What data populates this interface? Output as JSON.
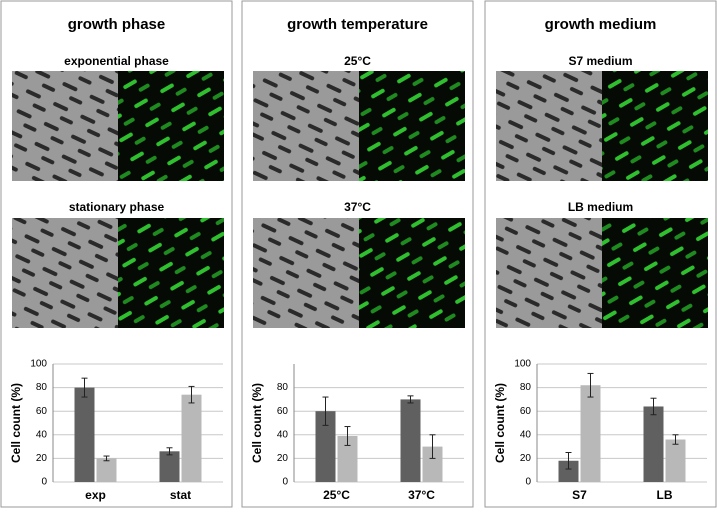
{
  "panels": [
    {
      "title": "growth phase",
      "images": [
        "exponential phase",
        "stationary phase"
      ]
    },
    {
      "title": "growth temperature",
      "images": [
        "25°C",
        "37°C"
      ]
    },
    {
      "title": "growth medium",
      "images": [
        "S7 medium",
        "LB medium"
      ]
    }
  ],
  "chart_data": [
    {
      "type": "bar",
      "ylabel": "Cell count (%)",
      "categories": [
        "exp",
        "stat"
      ],
      "series": [
        {
          "color": "#606060",
          "values": [
            80,
            26
          ],
          "errors": [
            8,
            3
          ]
        },
        {
          "color": "#b8b8b8",
          "values": [
            20,
            74
          ],
          "errors": [
            2,
            7
          ]
        }
      ],
      "ylim": [
        0,
        100
      ],
      "yticks": [
        0,
        20,
        40,
        60,
        80,
        100
      ],
      "grid": true
    },
    {
      "type": "bar",
      "ylabel": "Cell count (%)",
      "categories": [
        "25°C",
        "37°C"
      ],
      "series": [
        {
          "color": "#606060",
          "values": [
            60,
            70
          ],
          "errors": [
            12,
            3
          ]
        },
        {
          "color": "#b8b8b8",
          "values": [
            39,
            30
          ],
          "errors": [
            8,
            10
          ]
        }
      ],
      "ylim": [
        0,
        100
      ],
      "yticks": [
        0,
        20,
        40,
        60,
        80
      ],
      "grid": true
    },
    {
      "type": "bar",
      "ylabel": "Cell count (%)",
      "categories": [
        "S7",
        "LB"
      ],
      "series": [
        {
          "color": "#606060",
          "values": [
            18,
            64
          ],
          "errors": [
            7,
            7
          ]
        },
        {
          "color": "#b8b8b8",
          "values": [
            82,
            36
          ],
          "errors": [
            10,
            4
          ]
        }
      ],
      "ylim": [
        0,
        100
      ],
      "yticks": [
        0,
        20,
        40,
        60,
        80,
        100
      ],
      "grid": true
    }
  ]
}
